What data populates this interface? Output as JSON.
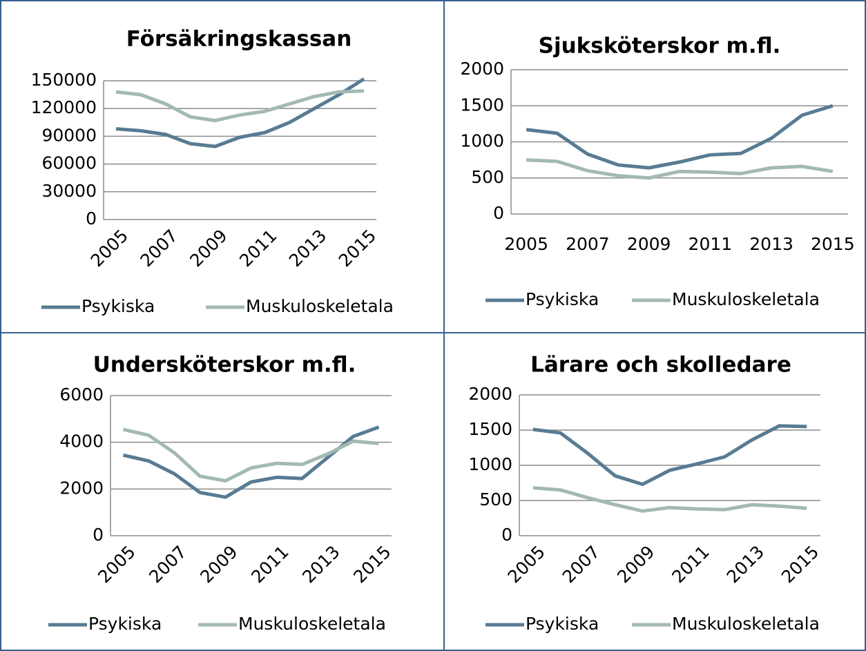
{
  "chart_data": [
    {
      "type": "line",
      "title": "Försäkringskassan",
      "categories": [
        "2005",
        null,
        "2007",
        null,
        "2009",
        null,
        "2011",
        null,
        "2013",
        null,
        "2015"
      ],
      "series": [
        {
          "name": "Psykiska",
          "color": "#587b93",
          "values": [
            98000,
            96000,
            92000,
            82000,
            79000,
            89000,
            94000,
            105000,
            120000,
            135000,
            152000
          ]
        },
        {
          "name": "Muskuloskeletala",
          "color": "#a3b9b1",
          "values": [
            138000,
            135000,
            125000,
            111000,
            107000,
            113000,
            117000,
            125000,
            133000,
            138000,
            139000
          ]
        }
      ],
      "ylim": [
        0,
        150000
      ],
      "yticks": [
        0,
        30000,
        60000,
        90000,
        120000,
        150000
      ],
      "grid": true,
      "legend": "bottom",
      "xlabel_rotation": 45
    },
    {
      "type": "line",
      "title": "Sjuksköterskor m.fl.",
      "categories": [
        "2005",
        null,
        "2007",
        null,
        "2009",
        null,
        "2011",
        null,
        "2013",
        null,
        "2015"
      ],
      "series": [
        {
          "name": "Psykiska",
          "color": "#587b93",
          "values": [
            1170,
            1120,
            830,
            680,
            640,
            720,
            820,
            840,
            1050,
            1370,
            1500
          ]
        },
        {
          "name": "Muskuloskeletala",
          "color": "#a3b9b1",
          "values": [
            750,
            730,
            600,
            530,
            500,
            590,
            580,
            560,
            640,
            660,
            590
          ]
        }
      ],
      "ylim": [
        0,
        2000
      ],
      "yticks": [
        0,
        500,
        1000,
        1500,
        2000
      ],
      "grid": true,
      "legend": "bottom",
      "xlabel_rotation": 0
    },
    {
      "type": "line",
      "title": "Undersköterskor m.fl.",
      "categories": [
        "2005",
        null,
        "2007",
        null,
        "2009",
        null,
        "2011",
        null,
        "2013",
        null,
        "2015"
      ],
      "series": [
        {
          "name": "Psykiska",
          "color": "#587b93",
          "values": [
            3450,
            3200,
            2650,
            1850,
            1650,
            2300,
            2500,
            2450,
            3350,
            4250,
            4650
          ]
        },
        {
          "name": "Muskuloskeletala",
          "color": "#a3b9b1",
          "values": [
            4550,
            4300,
            3550,
            2550,
            2350,
            2900,
            3100,
            3050,
            3500,
            4050,
            3950
          ]
        }
      ],
      "ylim": [
        0,
        6000
      ],
      "yticks": [
        0,
        2000,
        4000,
        6000
      ],
      "grid": true,
      "legend": "bottom",
      "xlabel_rotation": 45
    },
    {
      "type": "line",
      "title": "Lärare och skolledare",
      "categories": [
        "2005",
        null,
        "2007",
        null,
        "2009",
        null,
        "2011",
        null,
        "2013",
        null,
        "2015"
      ],
      "series": [
        {
          "name": "Psykiska",
          "color": "#587b93",
          "values": [
            1510,
            1460,
            1170,
            850,
            730,
            930,
            1020,
            1120,
            1360,
            1560,
            1550
          ]
        },
        {
          "name": "Muskuloskeletala",
          "color": "#a3b9b1",
          "values": [
            680,
            650,
            540,
            440,
            350,
            400,
            380,
            370,
            440,
            420,
            390
          ]
        }
      ],
      "ylim": [
        0,
        2000
      ],
      "yticks": [
        0,
        500,
        1000,
        1500,
        2000
      ],
      "grid": true,
      "legend": "bottom",
      "xlabel_rotation": 45
    }
  ]
}
